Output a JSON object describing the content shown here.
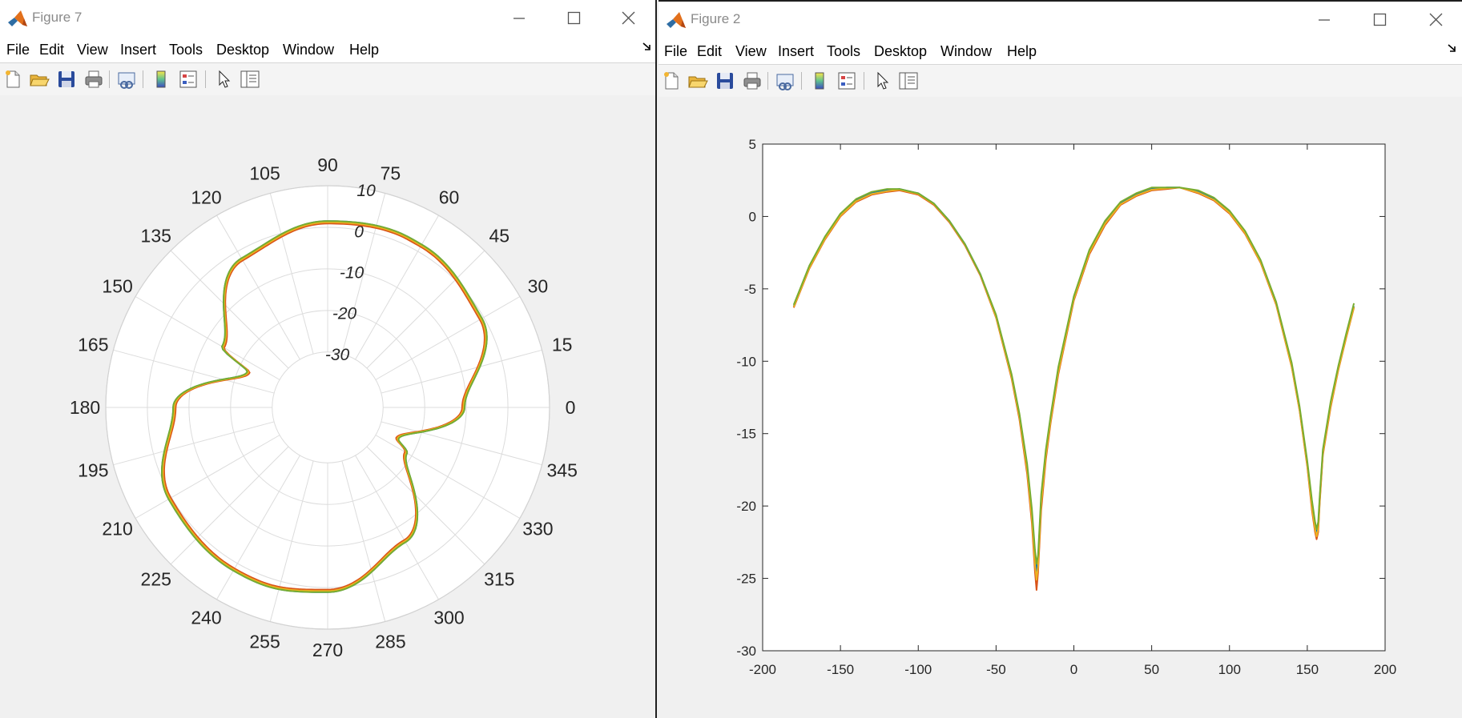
{
  "windows": [
    {
      "title": "Figure 7",
      "menu": [
        "File",
        "Edit",
        "View",
        "Insert",
        "Tools",
        "Desktop",
        "Window",
        "Help"
      ]
    },
    {
      "title": "Figure 2",
      "menu": [
        "File",
        "Edit",
        "View",
        "Insert",
        "Tools",
        "Desktop",
        "Window",
        "Help"
      ]
    }
  ],
  "toolbar_icons": [
    "new-figure-icon",
    "open-file-icon",
    "save-icon",
    "print-icon",
    "link-plot-icon",
    "colorbar-icon",
    "legend-icon",
    "pointer-icon",
    "property-inspector-icon"
  ],
  "series_colors": [
    "#0072BD",
    "#D95319",
    "#EDB120",
    "#77AC30"
  ],
  "chart_data": [
    {
      "type": "line",
      "subtype": "polar",
      "theta_ticks": [
        "0",
        "15",
        "30",
        "45",
        "60",
        "75",
        "90",
        "105",
        "120",
        "135",
        "150",
        "165",
        "180",
        "195",
        "210",
        "225",
        "240",
        "255",
        "270",
        "285",
        "300",
        "315",
        "330",
        "345"
      ],
      "r_ticks": [
        "-30",
        "-20",
        "-10",
        "0",
        "10"
      ],
      "r_lim": [
        -30,
        10
      ],
      "grid": true,
      "series_count": 4,
      "theta_deg": [
        -180,
        -150,
        -120,
        -110,
        -90,
        -60,
        -30,
        -24,
        0,
        30,
        60,
        68,
        90,
        120,
        150,
        156,
        180
      ],
      "r_db": [
        -6.5,
        0.5,
        1.7,
        1.8,
        0.8,
        -6.2,
        -21.6,
        -25,
        -10.7,
        -0.8,
        1.6,
        1.8,
        1.2,
        -2.2,
        -14.3,
        -22.5,
        -6.5
      ]
    },
    {
      "type": "line",
      "x": [
        -180,
        -170,
        -160,
        -150,
        -140,
        -130,
        -120,
        -112,
        -100,
        -90,
        -80,
        -70,
        -60,
        -50,
        -40,
        -35,
        -30,
        -27,
        -25,
        -24,
        -23,
        -21,
        -18,
        -15,
        -10,
        0,
        10,
        20,
        30,
        40,
        50,
        60,
        68,
        80,
        90,
        100,
        110,
        120,
        130,
        140,
        145,
        150,
        153,
        155,
        156,
        157,
        158,
        160,
        165,
        170,
        175,
        180
      ],
      "series": [
        {
          "values": [
            -6.2,
            -3.5,
            -1.5,
            0.1,
            1.1,
            1.6,
            1.8,
            1.9,
            1.6,
            0.9,
            -0.3,
            -1.9,
            -4.0,
            -6.9,
            -11,
            -13.7,
            -17.3,
            -20.5,
            -23.5,
            -24.5,
            -23.8,
            -19.5,
            -16.3,
            -14,
            -10.6,
            -5.6,
            -2.4,
            -0.4,
            0.9,
            1.5,
            1.9,
            2.0,
            2.0,
            1.7,
            1.2,
            0.3,
            -1.1,
            -3.1,
            -6.0,
            -10.3,
            -13.3,
            -17.1,
            -19.9,
            -21.4,
            -21.9,
            -21.4,
            -19.5,
            -16.3,
            -13.0,
            -10.5,
            -8.3,
            -6.2
          ]
        },
        {
          "values": [
            -6.3,
            -3.6,
            -1.6,
            0.0,
            1.0,
            1.5,
            1.7,
            1.8,
            1.5,
            0.8,
            -0.4,
            -2.0,
            -4.1,
            -7.0,
            -11.2,
            -14.0,
            -17.8,
            -21.2,
            -24.5,
            -25.8,
            -24.6,
            -20.3,
            -16.8,
            -14.3,
            -10.9,
            -5.8,
            -2.6,
            -0.6,
            0.8,
            1.4,
            1.8,
            1.9,
            2.0,
            1.6,
            1.1,
            0.2,
            -1.2,
            -3.2,
            -6.1,
            -10.4,
            -13.4,
            -17.3,
            -20.3,
            -21.8,
            -22.3,
            -21.8,
            -19.8,
            -16.5,
            -13.2,
            -10.6,
            -8.4,
            -6.3
          ]
        },
        {
          "values": [
            -6.25,
            -3.55,
            -1.55,
            0.05,
            1.05,
            1.55,
            1.75,
            1.85,
            1.55,
            0.85,
            -0.35,
            -1.95,
            -4.05,
            -6.95,
            -11.1,
            -13.85,
            -17.55,
            -20.85,
            -24.0,
            -25.1,
            -24.2,
            -19.9,
            -16.55,
            -14.15,
            -10.75,
            -5.7,
            -2.5,
            -0.5,
            0.85,
            1.45,
            1.85,
            1.95,
            2.0,
            1.65,
            1.15,
            0.25,
            -1.15,
            -3.15,
            -6.05,
            -10.35,
            -13.35,
            -17.2,
            -20.1,
            -21.6,
            -22.1,
            -21.6,
            -19.65,
            -16.4,
            -13.1,
            -10.55,
            -8.35,
            -6.25
          ]
        },
        {
          "values": [
            -6.1,
            -3.4,
            -1.4,
            0.2,
            1.2,
            1.7,
            1.9,
            1.9,
            1.6,
            0.9,
            -0.3,
            -1.9,
            -4.0,
            -6.8,
            -10.9,
            -13.6,
            -17.1,
            -20.2,
            -23.0,
            -24.0,
            -23.4,
            -19.2,
            -16.1,
            -13.8,
            -10.4,
            -5.5,
            -2.3,
            -0.3,
            1.0,
            1.6,
            2.0,
            2.0,
            2.0,
            1.8,
            1.3,
            0.4,
            -1.0,
            -3.0,
            -5.9,
            -10.1,
            -13.1,
            -16.9,
            -19.6,
            -21.1,
            -21.6,
            -21.1,
            -19.3,
            -16.1,
            -12.8,
            -10.3,
            -8.1,
            -6.0
          ]
        }
      ],
      "xlim": [
        -200,
        200
      ],
      "ylim": [
        -30,
        5
      ],
      "xticks": [
        "-200",
        "-150",
        "-100",
        "-50",
        "0",
        "50",
        "100",
        "150",
        "200"
      ],
      "yticks": [
        "5",
        "0",
        "-5",
        "-10",
        "-15",
        "-20",
        "-25",
        "-30"
      ],
      "grid": false
    }
  ]
}
